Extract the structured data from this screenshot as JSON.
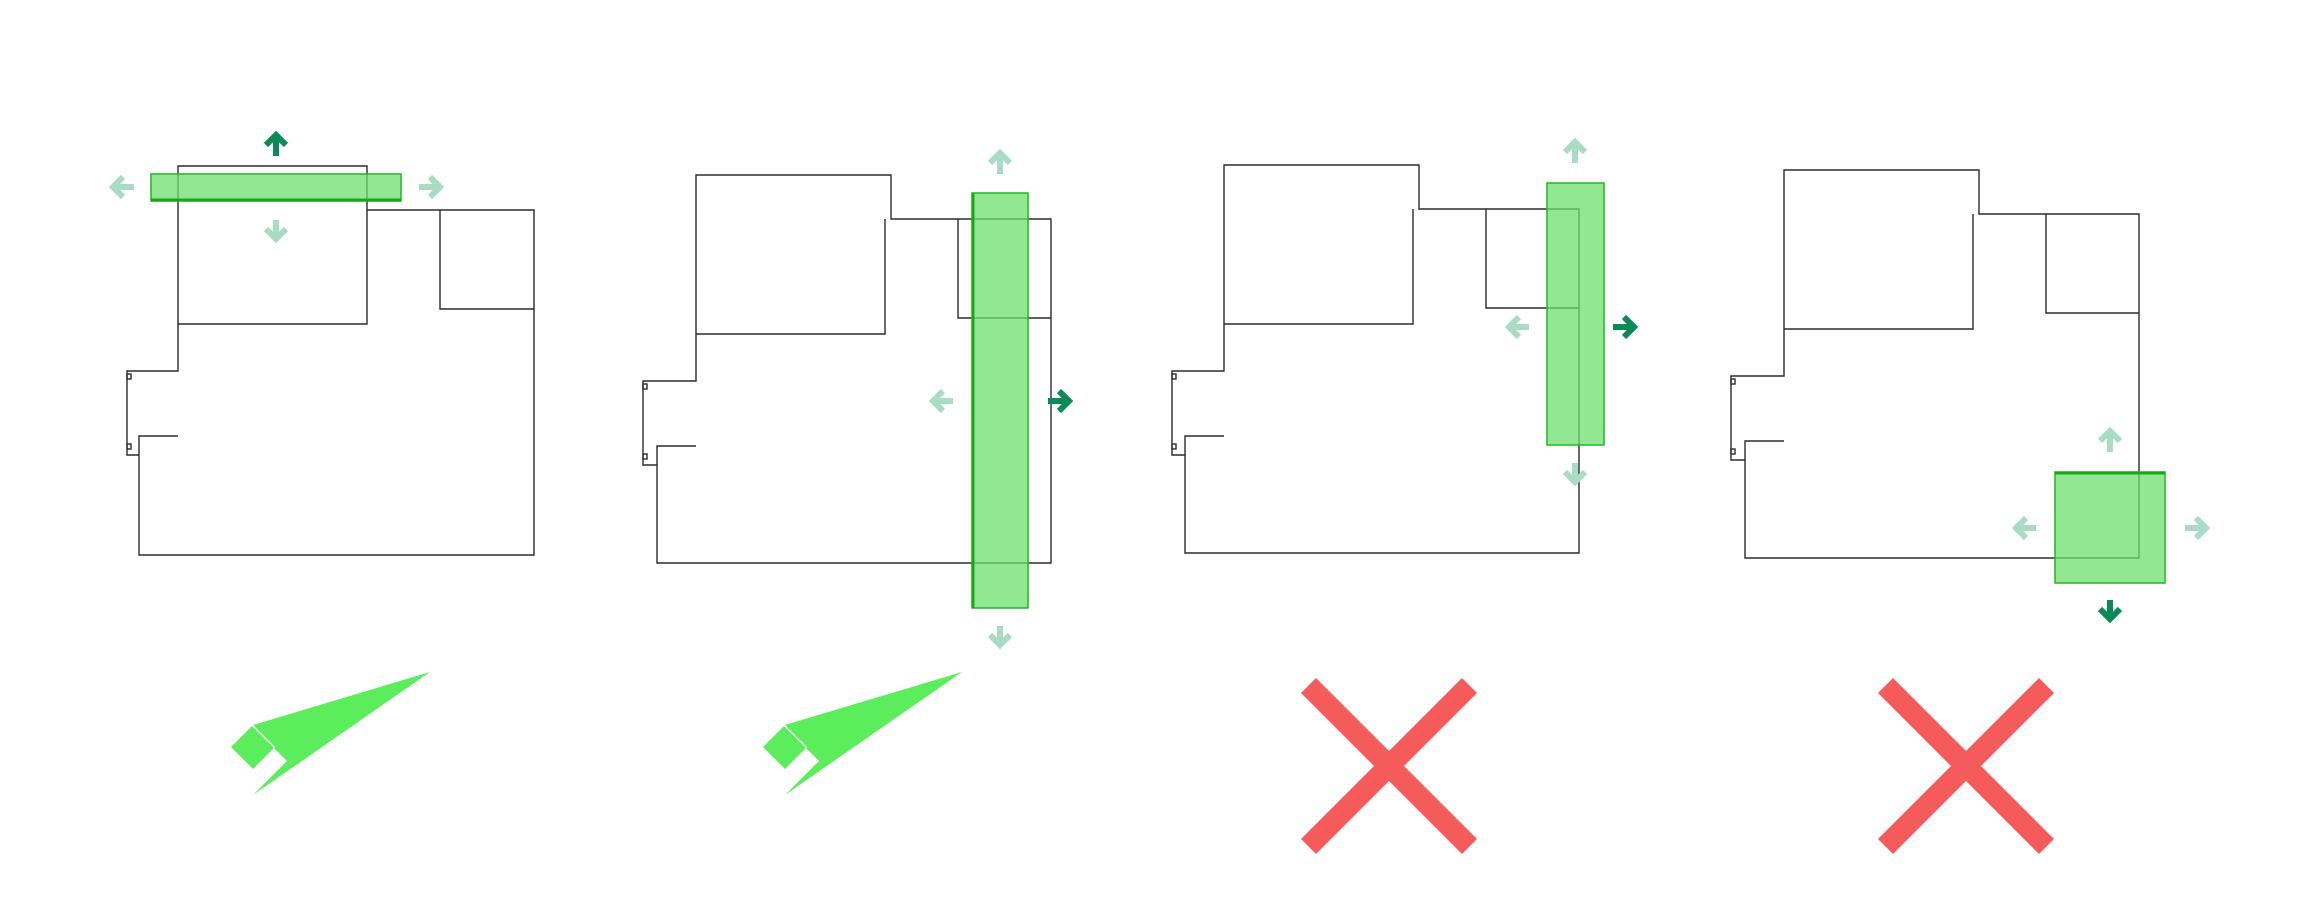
{
  "panels": [
    {
      "name": "panel-1",
      "verdict": "valid",
      "overlay_orientation": "horizontal",
      "active_arrow": "up",
      "arrows": [
        "left",
        "right",
        "up",
        "down"
      ]
    },
    {
      "name": "panel-2",
      "verdict": "valid",
      "overlay_orientation": "vertical",
      "active_arrow": "right",
      "arrows": [
        "left",
        "right",
        "up",
        "down"
      ]
    },
    {
      "name": "panel-3",
      "verdict": "invalid",
      "overlay_orientation": "vertical",
      "active_arrow": "right",
      "arrows": [
        "left",
        "right",
        "up",
        "down"
      ]
    },
    {
      "name": "panel-4",
      "verdict": "invalid",
      "overlay_orientation": "square",
      "active_arrow": "down",
      "arrows": [
        "left",
        "right",
        "up",
        "down"
      ]
    }
  ],
  "colors": {
    "valid": "#5ced5c",
    "invalid": "#f65b5b",
    "overlay": "#6ee06e",
    "arrow_active": "#0a8a57",
    "arrow_inactive": "#a9dcc4",
    "plan_line": "#2b2b2b"
  },
  "icons": {
    "valid": "checkmark-icon",
    "invalid": "cross-icon",
    "direction": "arrow-icon"
  }
}
